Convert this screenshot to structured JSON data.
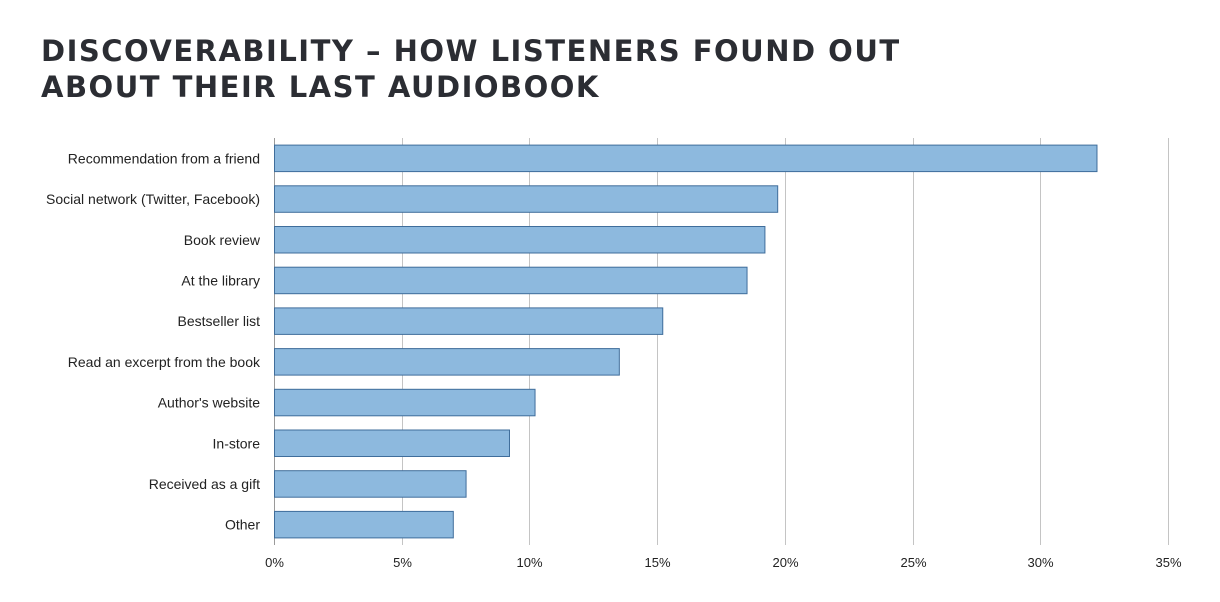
{
  "chart_data": {
    "type": "bar",
    "orientation": "horizontal",
    "title": [
      "DISCOVERABILITY – HOW LISTENERS FOUND OUT",
      "ABOUT THEIR LAST AUDIOBOOK"
    ],
    "categories": [
      "Recommendation from a friend",
      "Social network (Twitter, Facebook)",
      "Book review",
      "At the library",
      "Bestseller list",
      "Read an excerpt from the book",
      "Author's website",
      "In-store",
      "Received as a gift",
      "Other"
    ],
    "values": [
      32.2,
      19.7,
      19.2,
      18.5,
      15.2,
      13.5,
      10.2,
      9.2,
      7.5,
      7.0
    ],
    "xlim": [
      0,
      35
    ],
    "xticks": [
      "0%",
      "5%",
      "10%",
      "15%",
      "20%",
      "25%",
      "30%",
      "35%"
    ],
    "xlabel": "",
    "ylabel": "",
    "grid": "vertical",
    "legend": "none",
    "colors": {
      "bar_fill": "#8db9de",
      "bar_stroke": "#3f6d9b",
      "grid": "#c4c4c4",
      "axis": "#9a9a9a"
    }
  }
}
